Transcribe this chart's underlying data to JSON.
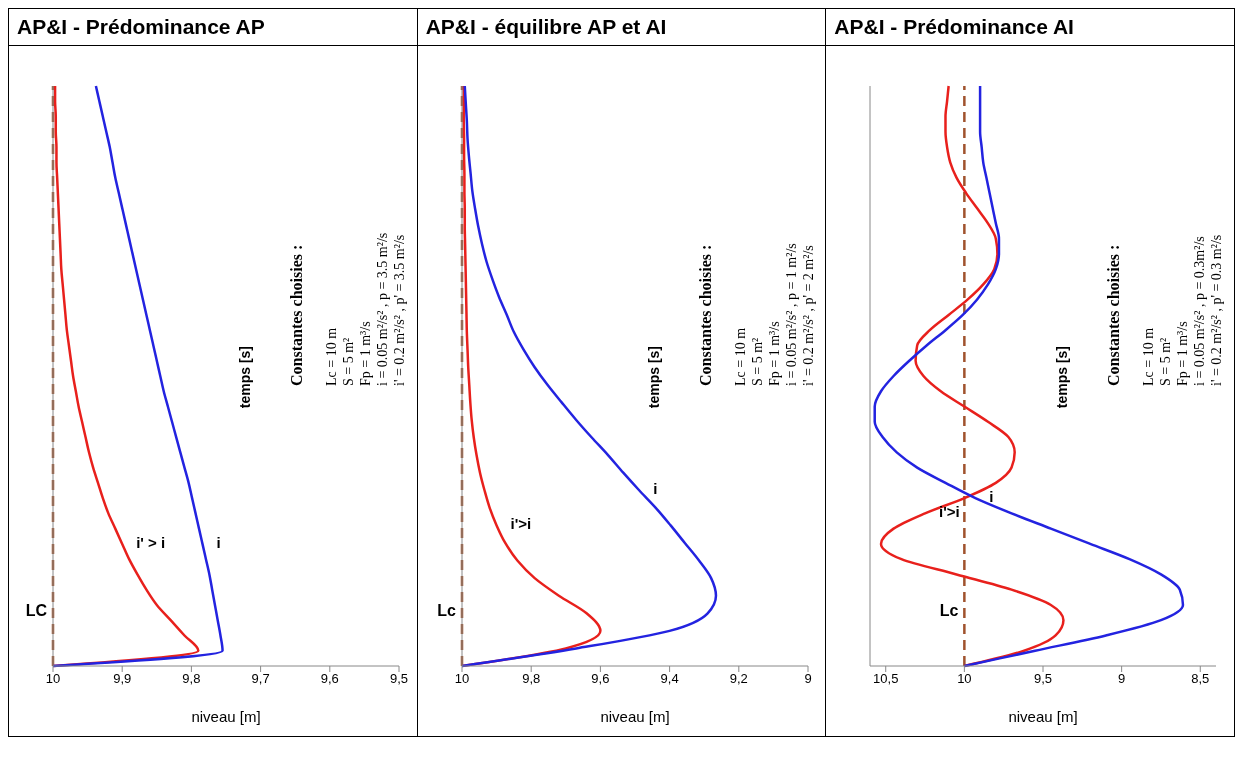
{
  "chart_data": [
    {
      "type": "line",
      "orientation": "horizontal",
      "title": "AP&I - Prédominance AP",
      "xlabel": "niveau [m]",
      "ylabel": "temps [s]",
      "xlim": [
        10,
        9.5
      ],
      "xticks": [
        {
          "value": 10,
          "label": "10"
        },
        {
          "value": 9.9,
          "label": "9,9"
        },
        {
          "value": 9.8,
          "label": "9,8"
        },
        {
          "value": 9.7,
          "label": "9,7"
        },
        {
          "value": 9.6,
          "label": "9,6"
        },
        {
          "value": 9.5,
          "label": "9,5"
        }
      ],
      "categories": [
        null,
        null,
        null,
        null,
        null,
        null,
        null,
        null,
        null,
        null,
        null,
        null,
        null,
        null,
        null,
        null,
        null,
        null,
        null,
        null,
        null,
        null,
        null,
        null,
        null,
        null,
        null,
        null,
        null,
        null,
        null,
        null,
        null,
        null,
        null,
        null,
        null,
        null,
        null
      ],
      "series": [
        {
          "name": "i' > i",
          "color": "#e8201c",
          "values": [
            9.997,
            9.997,
            9.996,
            9.996,
            9.995,
            9.995,
            9.994,
            9.993,
            9.992,
            9.991,
            9.99,
            9.989,
            9.988,
            9.986,
            9.984,
            9.982,
            9.98,
            9.977,
            9.974,
            9.971,
            9.967,
            9.963,
            9.958,
            9.953,
            9.948,
            9.942,
            9.935,
            9.928,
            9.92,
            9.91,
            9.9,
            9.89,
            9.878,
            9.865,
            9.85,
            9.83,
            9.81,
            9.79,
            10
          ]
        },
        {
          "name": "i",
          "color": "#2323e0",
          "values": [
            9.938,
            9.933,
            9.928,
            9.923,
            9.918,
            9.914,
            9.91,
            9.905,
            9.9,
            9.895,
            9.89,
            9.885,
            9.88,
            9.875,
            9.87,
            9.865,
            9.86,
            9.855,
            9.85,
            9.845,
            9.84,
            9.834,
            9.828,
            9.822,
            9.816,
            9.81,
            9.804,
            9.799,
            9.794,
            9.789,
            9.784,
            9.779,
            9.774,
            9.77,
            9.766,
            9.762,
            9.758,
            9.755,
            10
          ]
        }
      ],
      "ref_lines": [
        {
          "axis": "x",
          "value": 10,
          "label": "LC",
          "color": "#a0522d",
          "line_style": "dashed"
        }
      ],
      "annotations": [
        "Constantes choisies :",
        "Lc = 10 m",
        "S = 5 m²",
        "Fp = 1 m³/s",
        "i = 0.05 m²/s² ,  p = 3.5 m²/s",
        "i' = 0.2 m²/s² ,  p' = 3.5 m²/s"
      ],
      "legend": false,
      "marker": "none",
      "line_style": "solid"
    },
    {
      "type": "line",
      "orientation": "horizontal",
      "title": "AP&I - équilibre AP et AI",
      "xlabel": "niveau [m]",
      "ylabel": "temps [s]",
      "xlim": [
        10,
        9
      ],
      "xticks": [
        {
          "value": 10,
          "label": "10"
        },
        {
          "value": 9.8,
          "label": "9,8"
        },
        {
          "value": 9.6,
          "label": "9,6"
        },
        {
          "value": 9.4,
          "label": "9,4"
        },
        {
          "value": 9.2,
          "label": "9,2"
        },
        {
          "value": 9,
          "label": "9"
        }
      ],
      "categories": [
        null,
        null,
        null,
        null,
        null,
        null,
        null,
        null,
        null,
        null,
        null,
        null,
        null,
        null,
        null,
        null,
        null,
        null,
        null,
        null,
        null,
        null,
        null,
        null,
        null,
        null,
        null,
        null,
        null,
        null,
        null,
        null,
        null,
        null
      ],
      "series": [
        {
          "name": "i'>i",
          "color": "#e8201c",
          "values": [
            9.995,
            9.995,
            9.995,
            9.994,
            9.994,
            9.993,
            9.993,
            9.992,
            9.992,
            9.991,
            9.99,
            9.989,
            9.988,
            9.987,
            9.986,
            9.984,
            9.982,
            9.979,
            9.976,
            9.972,
            9.966,
            9.958,
            9.948,
            9.935,
            9.92,
            9.9,
            9.875,
            9.84,
            9.79,
            9.72,
            9.64,
            9.6,
            9.7,
            10
          ]
        },
        {
          "name": "i",
          "color": "#2323e0",
          "values": [
            9.992,
            9.989,
            9.986,
            9.984,
            9.98,
            9.975,
            9.97,
            9.962,
            9.953,
            9.942,
            9.929,
            9.912,
            9.893,
            9.871,
            9.85,
            9.822,
            9.79,
            9.753,
            9.712,
            9.67,
            9.625,
            9.578,
            9.534,
            9.488,
            9.44,
            9.397,
            9.356,
            9.315,
            9.28,
            9.266,
            9.29,
            9.4,
            9.67,
            10
          ]
        }
      ],
      "ref_lines": [
        {
          "axis": "x",
          "value": 10,
          "label": "Lc",
          "color": "#a0522d",
          "line_style": "dashed"
        }
      ],
      "annotations": [
        "Constantes choisies :",
        "Lc = 10 m",
        "S = 5 m²",
        "Fp = 1 m³/s",
        "i = 0.05 m²/s² ,  p = 1 m²/s",
        "i' = 0.2 m²/s² ,  p' = 2 m²/s"
      ],
      "legend": false,
      "marker": "none",
      "line_style": "solid"
    },
    {
      "type": "line",
      "orientation": "horizontal",
      "title": "AP&I - Prédominance AI",
      "xlabel": "niveau [m]",
      "ylabel": "temps [s]",
      "xlim": [
        10.6,
        8.4
      ],
      "xticks": [
        {
          "value": 10.5,
          "label": "10,5"
        },
        {
          "value": 10,
          "label": "10"
        },
        {
          "value": 9.5,
          "label": "9,5"
        },
        {
          "value": 9,
          "label": "9"
        },
        {
          "value": 8.5,
          "label": "8,5"
        }
      ],
      "categories": [
        null,
        null,
        null,
        null,
        null,
        null,
        null,
        null,
        null,
        null,
        null,
        null,
        null,
        null,
        null,
        null,
        null,
        null,
        null,
        null,
        null,
        null,
        null,
        null,
        null,
        null,
        null,
        null,
        null,
        null,
        null,
        null,
        null,
        null,
        null,
        null,
        null,
        null,
        null
      ],
      "series": [
        {
          "name": "i'>i",
          "color": "#e8201c",
          "values": [
            10.1,
            10.11,
            10.12,
            10.12,
            10.11,
            10.09,
            10.05,
            9.99,
            9.92,
            9.85,
            9.8,
            9.79,
            9.81,
            9.88,
            9.98,
            10.1,
            10.22,
            10.3,
            10.31,
            10.26,
            10.15,
            10,
            9.85,
            9.72,
            9.68,
            9.7,
            9.8,
            10,
            10.25,
            10.45,
            10.53,
            10.4,
            10.05,
            9.7,
            9.45,
            9.37,
            9.42,
            9.62,
            10
          ]
        },
        {
          "name": "i",
          "color": "#2323e0",
          "values": [
            9.9,
            9.9,
            9.9,
            9.9,
            9.89,
            9.88,
            9.86,
            9.84,
            9.82,
            9.8,
            9.78,
            9.78,
            9.8,
            9.85,
            9.92,
            10.01,
            10.12,
            10.24,
            10.35,
            10.45,
            10.53,
            10.57,
            10.57,
            10.52,
            10.43,
            10.3,
            10.12,
            9.93,
            9.7,
            9.45,
            9.2,
            8.95,
            8.75,
            8.63,
            8.61,
            8.75,
            9.1,
            9.55,
            10
          ]
        }
      ],
      "ref_lines": [
        {
          "axis": "x",
          "value": 10,
          "label": "Lc",
          "color": "#a0522d",
          "line_style": "dashed"
        }
      ],
      "annotations": [
        "Constantes choisies :",
        "Lc = 10 m",
        "S = 5 m²",
        "Fp = 1 m³/s",
        "i = 0.05 m²/s² ,  p = 0.3m²/s",
        "i' = 0.2 m²/s² ,  p' = 0.3 m²/s"
      ],
      "legend": false,
      "marker": "none",
      "line_style": "solid"
    }
  ]
}
